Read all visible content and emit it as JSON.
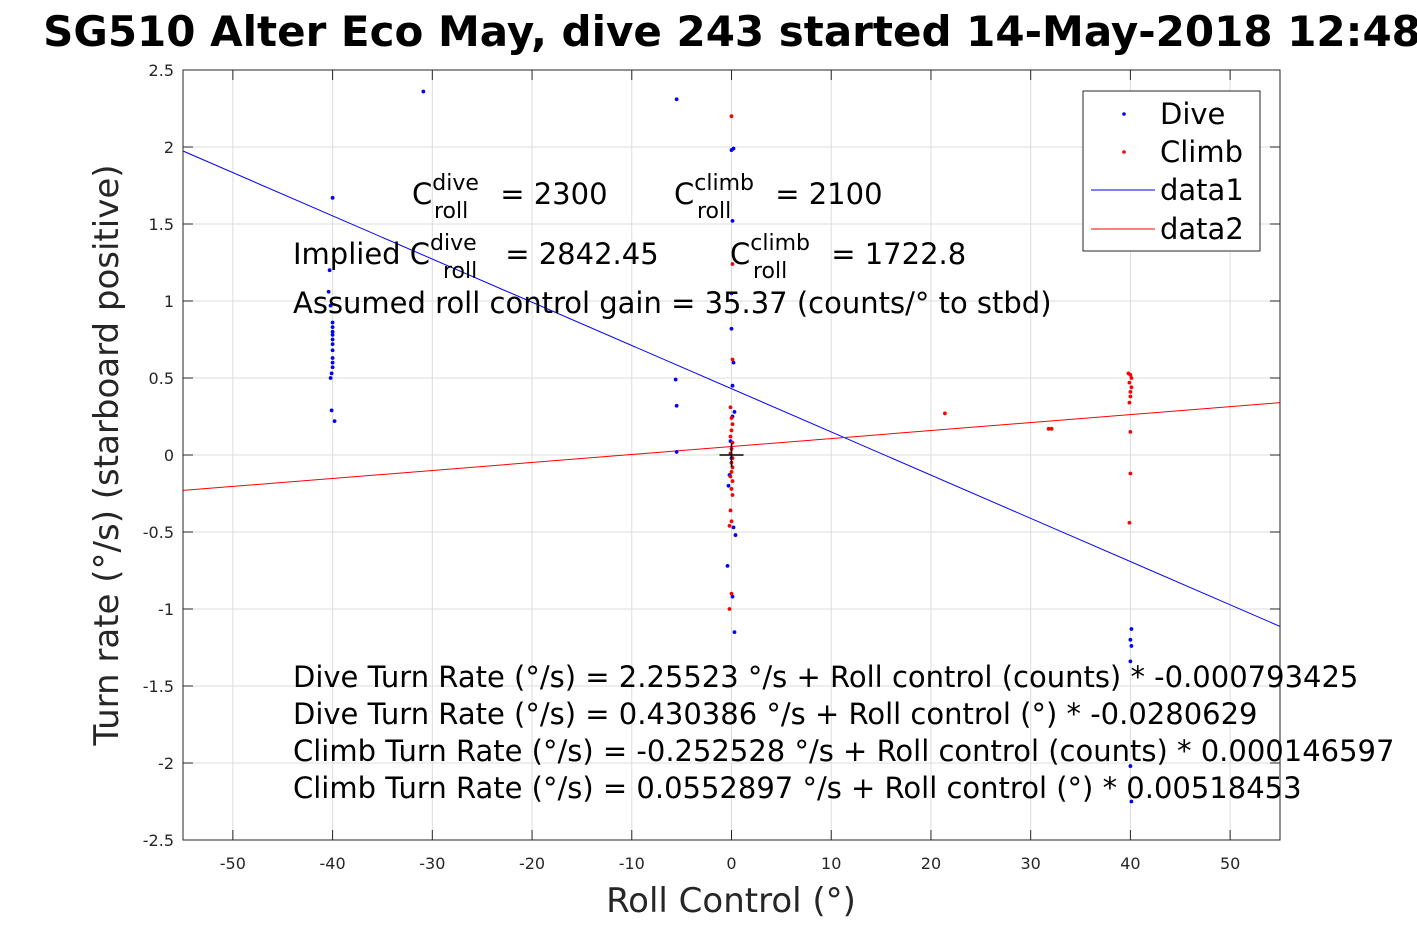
{
  "chart_data": {
    "type": "scatter",
    "title": "SG510 Alter Eco May, dive 243 started 14-May-2018 12:48",
    "xlabel": "Roll Control (°)",
    "ylabel": "Turn rate (°/s) (starboard positive)",
    "xlim": [
      -55,
      55
    ],
    "ylim": [
      -2.5,
      2.5
    ],
    "xticks": [
      -50,
      -40,
      -30,
      -20,
      -10,
      0,
      10,
      20,
      30,
      40,
      50
    ],
    "yticks": [
      -2.5,
      -2,
      -1.5,
      -1,
      -0.5,
      0,
      0.5,
      1,
      1.5,
      2,
      2.5
    ],
    "xtick_labels": [
      "-50",
      "-40",
      "-30",
      "-20",
      "-10",
      "0",
      "10",
      "20",
      "30",
      "40",
      "50"
    ],
    "ytick_labels": [
      "-2.5",
      "-2",
      "-1.5",
      "-1",
      "-0.5",
      "0",
      "0.5",
      "1",
      "1.5",
      "2",
      "2.5"
    ],
    "grid": true,
    "legend_position": "top-right",
    "series": [
      {
        "name": "Dive",
        "kind": "points",
        "color": "#0000ff",
        "points": [
          [
            -40,
            1.67
          ],
          [
            -40.3,
            1.2
          ],
          [
            -40.4,
            1.06
          ],
          [
            -40.2,
            0.97
          ],
          [
            -40,
            0.86
          ],
          [
            -40,
            0.83
          ],
          [
            -40,
            0.8
          ],
          [
            -40,
            0.78
          ],
          [
            -40,
            0.75
          ],
          [
            -40,
            0.72
          ],
          [
            -40,
            0.68
          ],
          [
            -40,
            0.63
          ],
          [
            -40,
            0.6
          ],
          [
            -40,
            0.57
          ],
          [
            -40.1,
            0.53
          ],
          [
            -40.2,
            0.5
          ],
          [
            -40.1,
            0.29
          ],
          [
            -39.8,
            0.22
          ],
          [
            -30.9,
            2.36
          ],
          [
            -5.5,
            2.31
          ],
          [
            -5.6,
            0.49
          ],
          [
            -5.5,
            0.32
          ],
          [
            -5.5,
            0.02
          ],
          [
            0,
            1.98
          ],
          [
            0.2,
            1.99
          ],
          [
            0.1,
            1.52
          ],
          [
            0,
            1.05
          ],
          [
            0,
            0.82
          ],
          [
            0.2,
            0.6
          ],
          [
            0.1,
            0.45
          ],
          [
            0.3,
            0.28
          ],
          [
            0.1,
            0.25
          ],
          [
            -0.1,
            0.09
          ],
          [
            0,
            -0.02
          ],
          [
            -0.2,
            -0.13
          ],
          [
            -0.3,
            -0.2
          ],
          [
            0.2,
            -0.47
          ],
          [
            0.4,
            -0.52
          ],
          [
            -0.4,
            -0.72
          ],
          [
            0.1,
            -0.92
          ],
          [
            0.3,
            -1.15
          ],
          [
            40.1,
            -1.13
          ],
          [
            40,
            -1.2
          ],
          [
            40.1,
            -1.24
          ],
          [
            40,
            -1.34
          ],
          [
            40,
            -2.02
          ],
          [
            40.1,
            -2.25
          ]
        ]
      },
      {
        "name": "Climb",
        "kind": "points",
        "color": "#ff0000",
        "points": [
          [
            0,
            2.2
          ],
          [
            0.1,
            1.24
          ],
          [
            0.1,
            0.62
          ],
          [
            -0.1,
            0.31
          ],
          [
            0,
            0.24
          ],
          [
            0.1,
            0.2
          ],
          [
            0,
            0.16
          ],
          [
            -0.1,
            0.12
          ],
          [
            0.1,
            0.08
          ],
          [
            0,
            0.04
          ],
          [
            -0.1,
            0.01
          ],
          [
            0.1,
            -0.02
          ],
          [
            0,
            -0.05
          ],
          [
            0.1,
            -0.08
          ],
          [
            0,
            -0.11
          ],
          [
            -0.1,
            -0.14
          ],
          [
            0.1,
            -0.17
          ],
          [
            0,
            -0.22
          ],
          [
            0.1,
            -0.26
          ],
          [
            -0.1,
            -0.36
          ],
          [
            0,
            -0.43
          ],
          [
            -0.2,
            -0.46
          ],
          [
            0,
            -0.9
          ],
          [
            -0.2,
            -1.0
          ],
          [
            21.4,
            0.27
          ],
          [
            31.8,
            0.17
          ],
          [
            32.1,
            0.17
          ],
          [
            39.8,
            0.53
          ],
          [
            40,
            0.52
          ],
          [
            40.1,
            0.5
          ],
          [
            39.9,
            0.47
          ],
          [
            40.1,
            0.44
          ],
          [
            40,
            0.41
          ],
          [
            40,
            0.38
          ],
          [
            39.9,
            0.34
          ],
          [
            40,
            0.15
          ],
          [
            40,
            -0.12
          ],
          [
            39.9,
            -0.44
          ]
        ]
      },
      {
        "name": "data1",
        "kind": "line",
        "color": "#0000ff",
        "x": [
          -55,
          55
        ],
        "y": [
          1.974,
          -1.113
        ]
      },
      {
        "name": "data2",
        "kind": "line",
        "color": "#ff0000",
        "x": [
          -55,
          55
        ],
        "y": [
          -0.23,
          0.34
        ]
      }
    ],
    "annotations": {
      "c_dive_prefix": "C",
      "c_dive_sup": "dive",
      "c_dive_sub": "roll",
      "c_dive_value": " = 2300",
      "c_climb_prefix": "C",
      "c_climb_sup": "climb",
      "c_climb_sub": "roll",
      "c_climb_value": " = 2100",
      "implied_prefix": "Implied C",
      "implied_dive_sup": "dive",
      "implied_dive_sub": "roll",
      "implied_dive_value": " = 2842.45",
      "implied_climb_prefix": "C",
      "implied_climb_sup": "climb",
      "implied_climb_sub": "roll",
      "implied_climb_value": " = 1722.8",
      "gain": "Assumed roll control gain = 35.37 (counts/° to stbd)",
      "eq1": "Dive Turn Rate (°/s) = 2.25523 °/s + Roll control (counts) * -0.000793425",
      "eq2": "Dive Turn Rate (°/s) = 0.430386 °/s + Roll control (°) * -0.0280629",
      "eq3": "Climb Turn Rate (°/s) = -0.252528 °/s + Roll control (counts) * 0.000146597",
      "eq4": "Climb Turn Rate (°/s) = 0.0552897 °/s + Roll control (°) * 0.00518453"
    }
  }
}
